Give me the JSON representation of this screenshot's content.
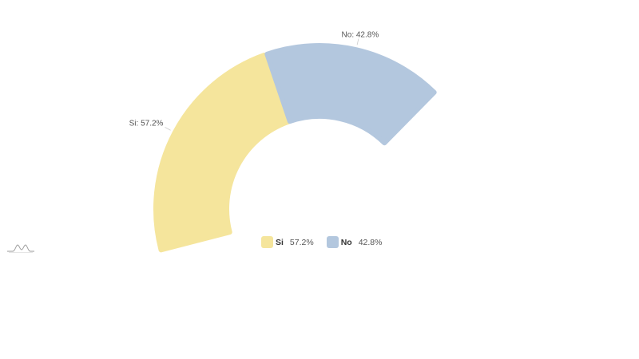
{
  "chart_data": {
    "type": "pie",
    "subtype": "semi-donut",
    "slices": [
      {
        "name": "Si",
        "value": 57.2,
        "color": "#f5e59c",
        "label": "Si: 57.2%",
        "legend_value": "57.2%"
      },
      {
        "name": "No",
        "value": 42.8,
        "color": "#b3c7de",
        "label": "No: 42.8%",
        "legend_value": "42.8%"
      }
    ],
    "legend_placement": "bottom-center"
  },
  "watermark": {
    "icon": "chart-logo-icon"
  }
}
